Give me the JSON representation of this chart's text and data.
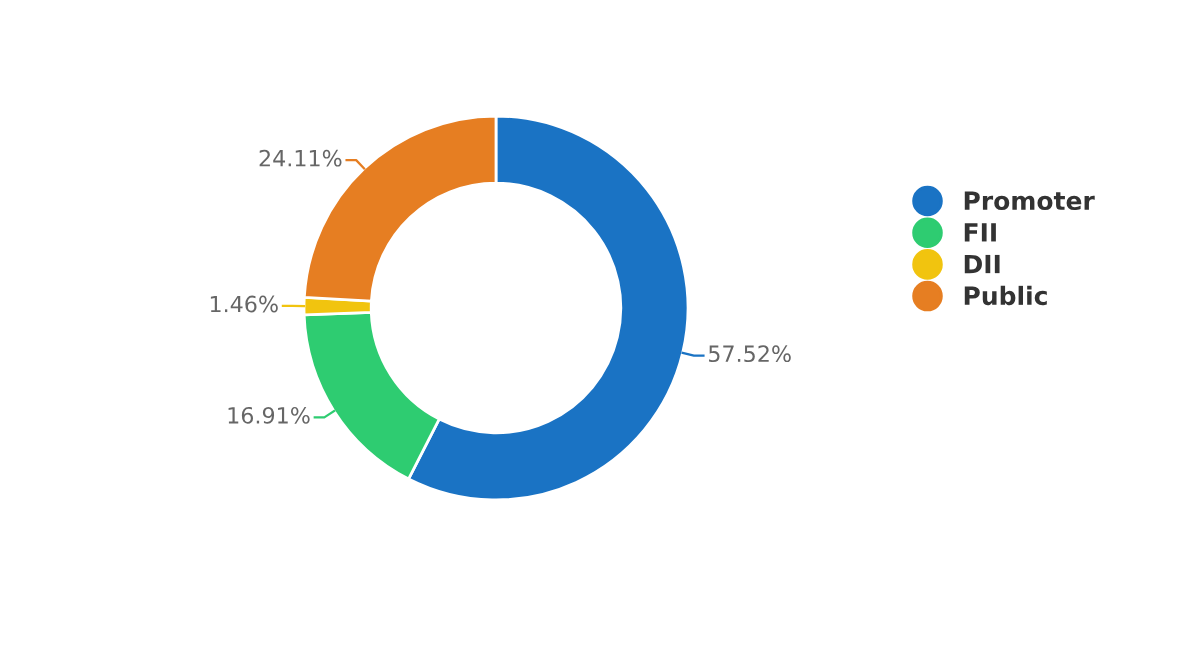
{
  "chart_data": {
    "type": "donut",
    "categories": [
      "Promoter",
      "FII",
      "DII",
      "Public"
    ],
    "values": [
      57.52,
      16.91,
      1.46,
      24.11
    ],
    "colors": [
      "#1a73c4",
      "#2ecc71",
      "#f1c40f",
      "#e67e22"
    ],
    "value_labels": [
      "57.52%",
      "16.91%",
      "1.46%",
      "24.11%"
    ],
    "legend": "right"
  }
}
